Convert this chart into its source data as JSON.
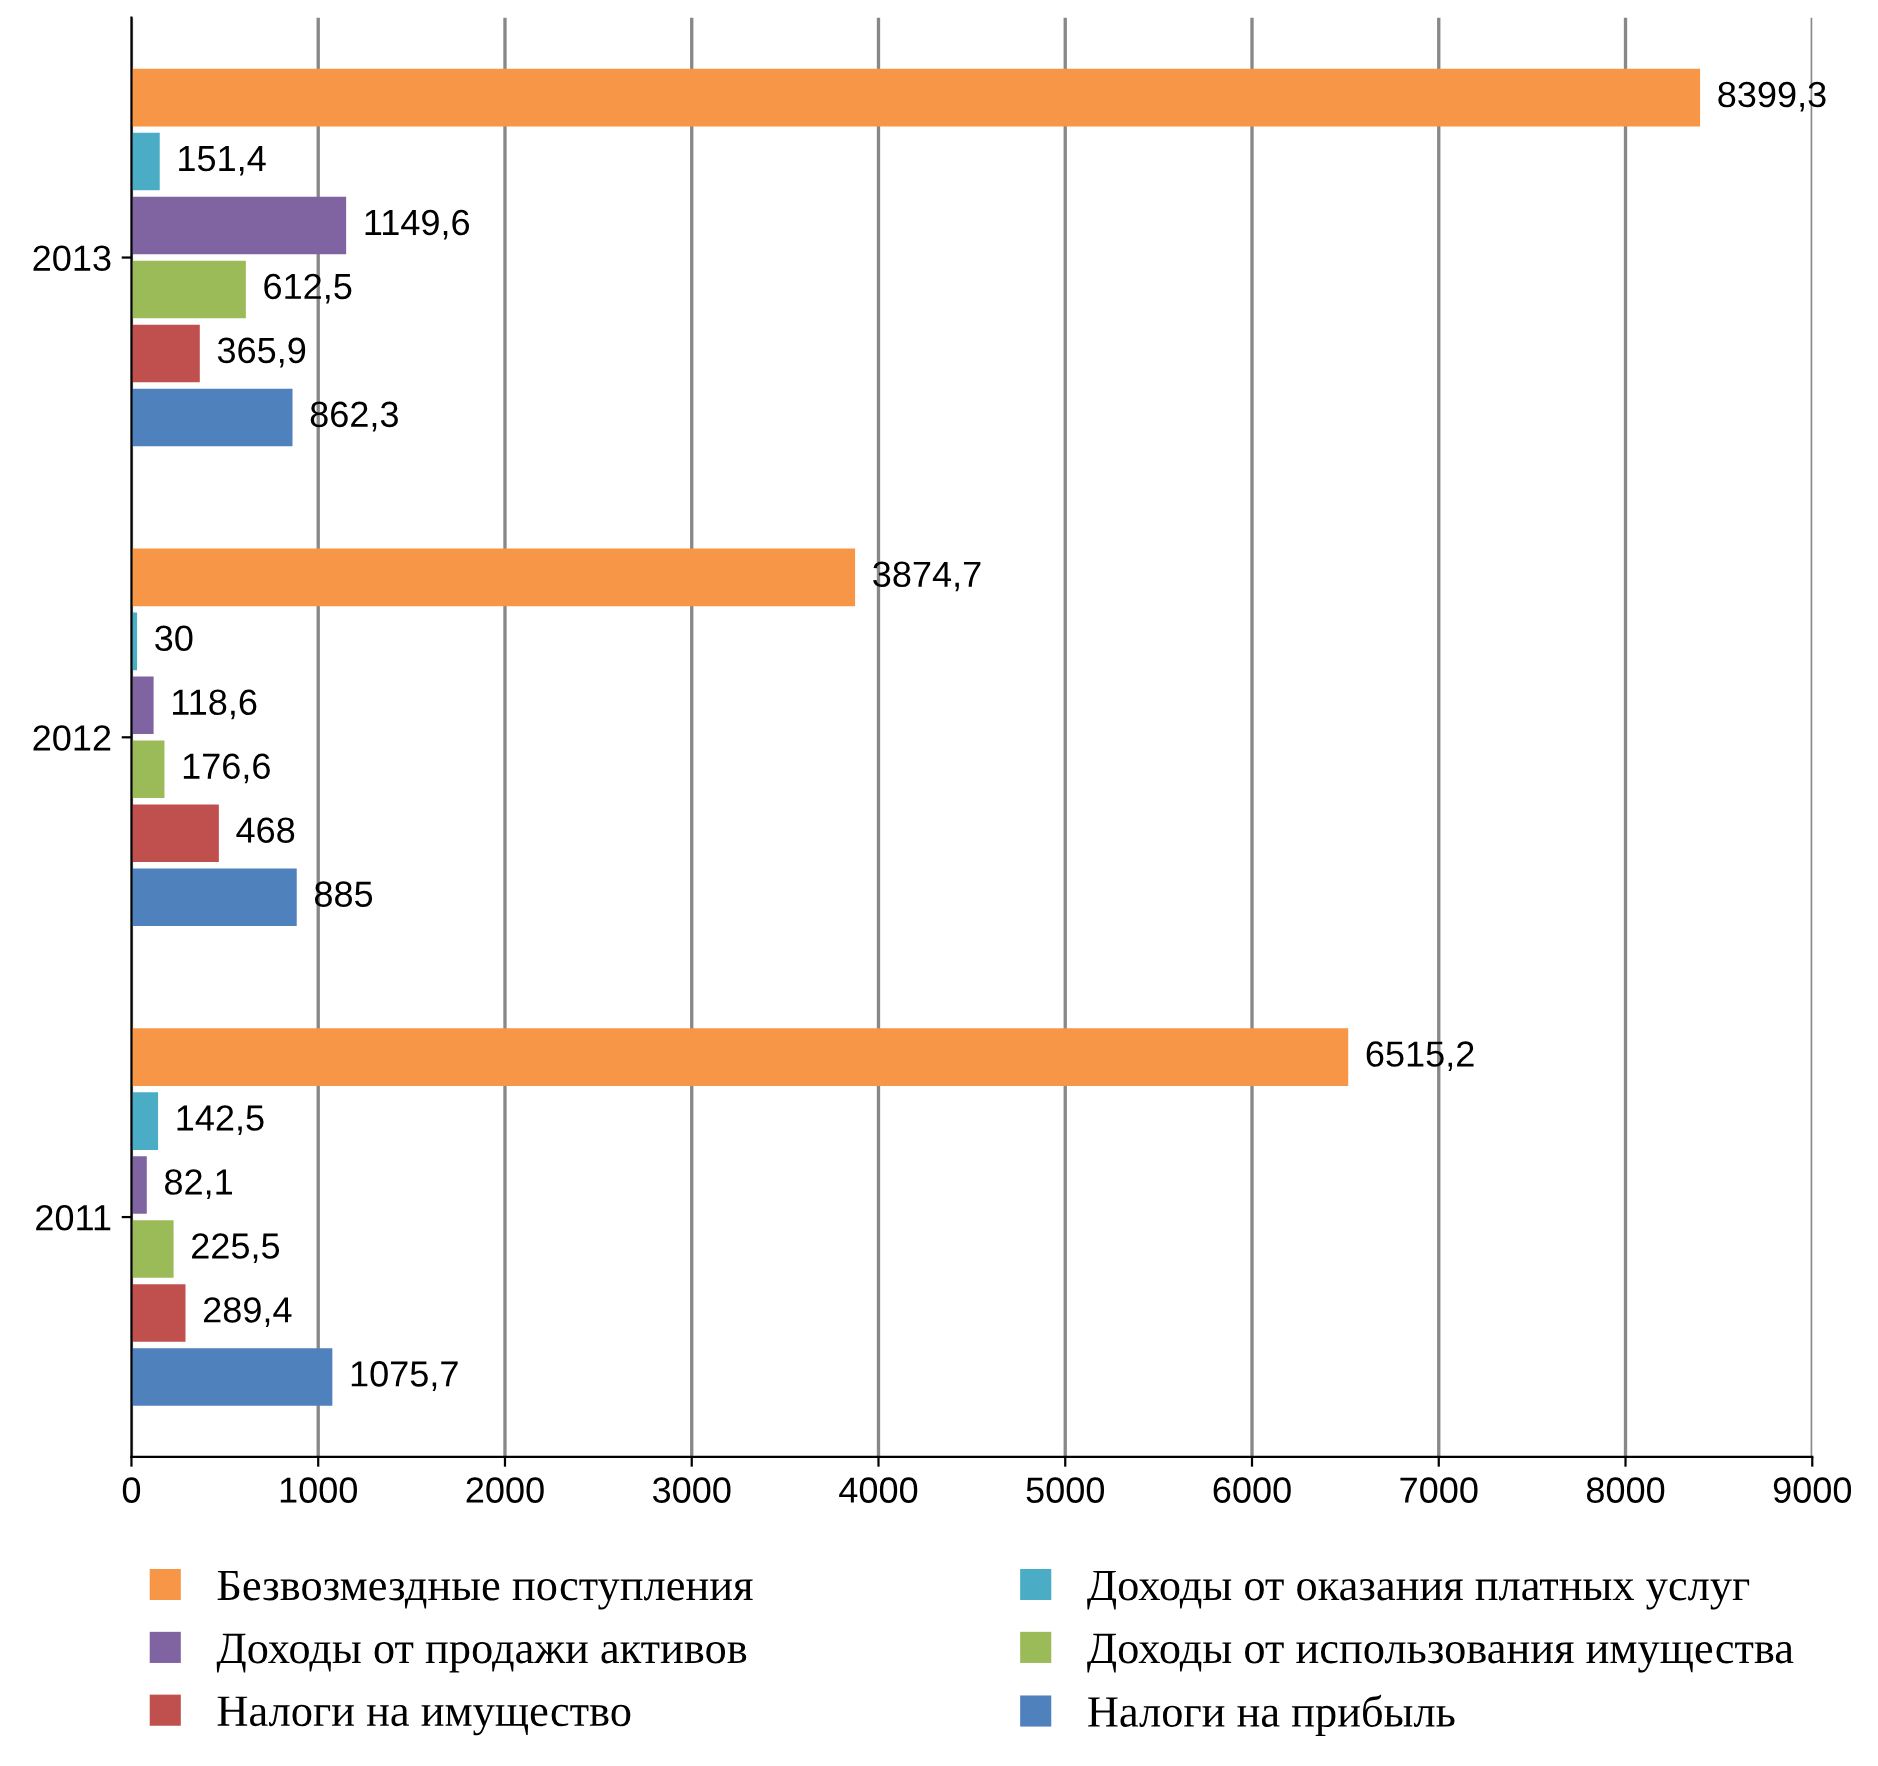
{
  "chart_data": {
    "type": "bar",
    "orientation": "horizontal",
    "categories": [
      "2013",
      "2012",
      "2011"
    ],
    "series": [
      {
        "name": "Безвозмездные поступления",
        "color": "#f79646",
        "values": [
          8399.3,
          3874.7,
          6515.2
        ],
        "value_labels": [
          "8399,3",
          "3874,7",
          "6515,2"
        ]
      },
      {
        "name": "Доходы от оказания платных услуг",
        "color": "#4bacc6",
        "values": [
          151.4,
          30,
          142.5
        ],
        "value_labels": [
          "151,4",
          "30",
          "142,5"
        ]
      },
      {
        "name": "Доходы от продажи активов",
        "color": "#8064a2",
        "values": [
          1149.6,
          118.6,
          82.1
        ],
        "value_labels": [
          "1149,6",
          "118,6",
          "82,1"
        ]
      },
      {
        "name": "Доходы от использования имущества",
        "color": "#9bbb59",
        "values": [
          612.5,
          176.6,
          225.5
        ],
        "value_labels": [
          "612,5",
          "176,6",
          "225,5"
        ]
      },
      {
        "name": "Налоги на имущество",
        "color": "#c0504d",
        "values": [
          365.9,
          468,
          289.4
        ],
        "value_labels": [
          "365,9",
          "468",
          "289,4"
        ]
      },
      {
        "name": "Налоги на прибыль",
        "color": "#4f81bd",
        "values": [
          862.3,
          885,
          1075.7
        ],
        "value_labels": [
          "862,3",
          "885",
          "1075,7"
        ]
      }
    ],
    "xlim": [
      0,
      9000
    ],
    "xticks": [
      0,
      1000,
      2000,
      3000,
      4000,
      5000,
      6000,
      7000,
      8000,
      9000
    ],
    "grid": "x",
    "legend": "bottom"
  }
}
